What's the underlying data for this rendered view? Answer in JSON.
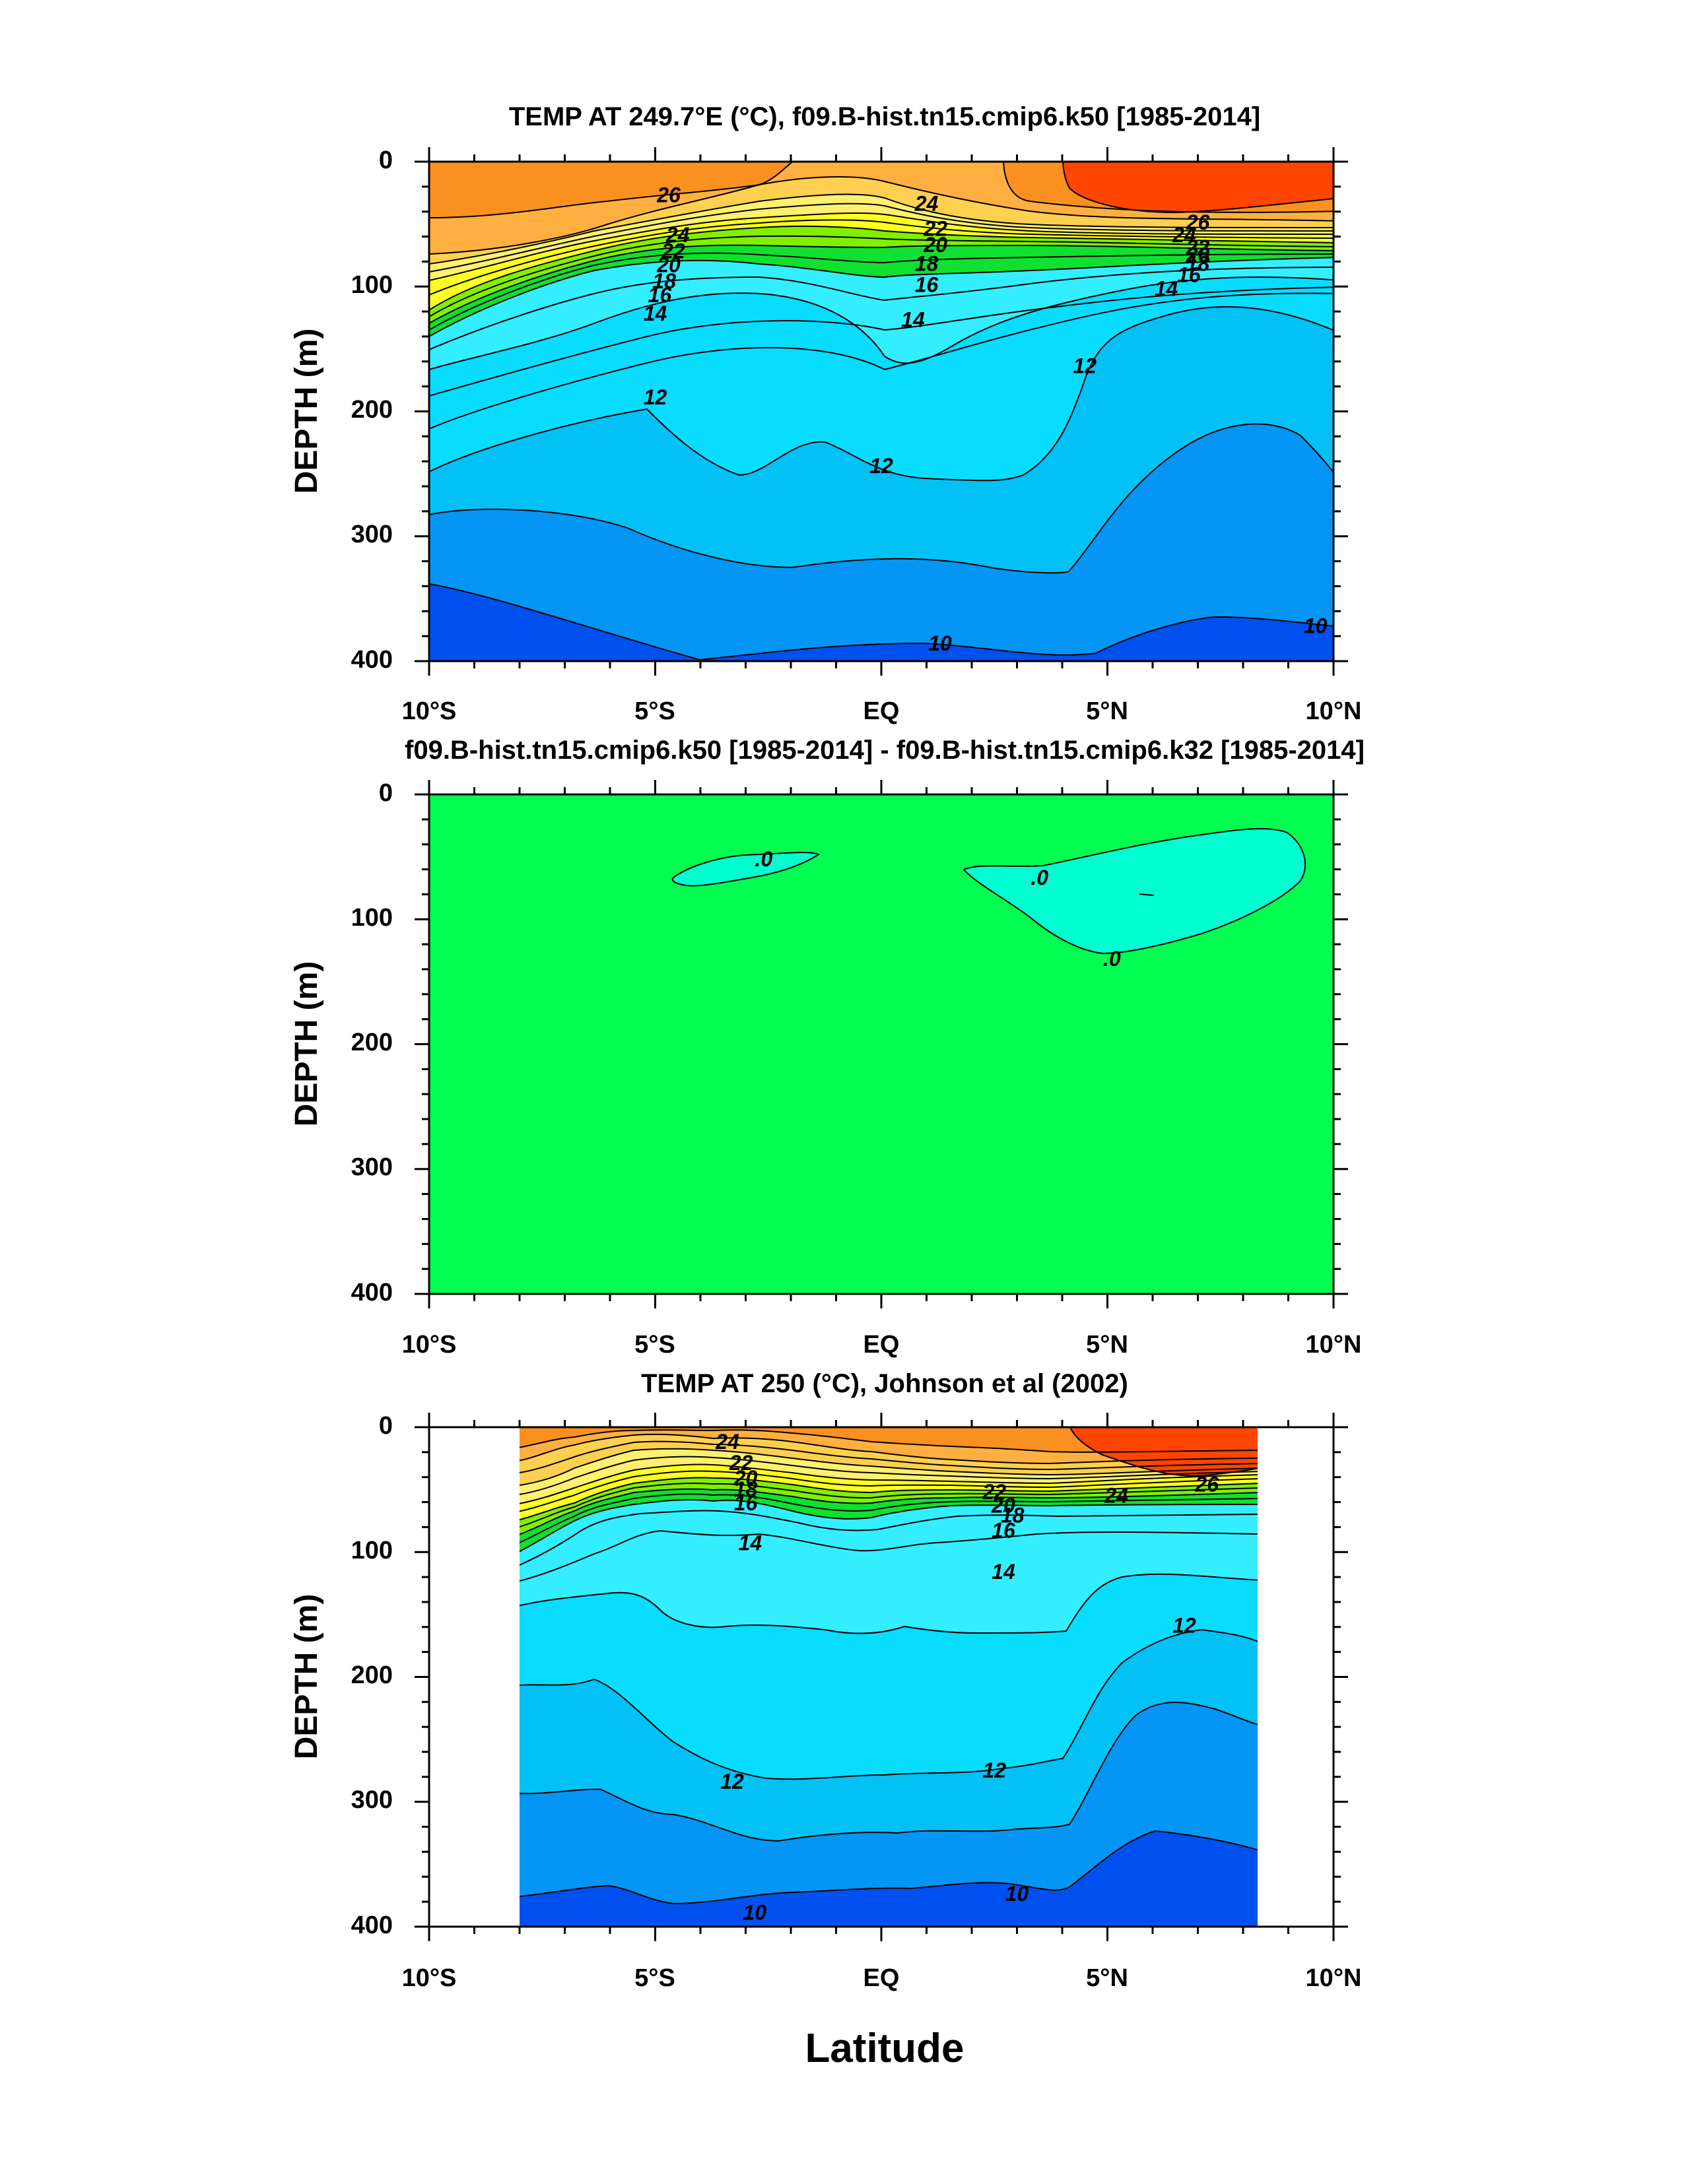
{
  "figure": {
    "xlabel": "Latitude"
  },
  "chart_data": [
    {
      "type": "heatmap",
      "subtype": "filled-contour",
      "title": "TEMP AT 249.7°E (°C), f09.B-hist.tn15.cmip6.k50 [1985-2014]",
      "ylabel": "DEPTH (m)",
      "xlabel": "",
      "x_tick_labels": [
        "10°S",
        "5°S",
        "EQ",
        "5°N",
        "10°N"
      ],
      "y_tick_labels": [
        "0",
        "100",
        "200",
        "300",
        "400"
      ],
      "xlim": [
        -10,
        10
      ],
      "ylim": [
        0,
        400
      ],
      "data_x_extent": [
        -10,
        10
      ],
      "y_inverted": true,
      "contour_levels": [
        10,
        11,
        12,
        13,
        14,
        15,
        16,
        17,
        18,
        19,
        20,
        21,
        22,
        23,
        24,
        25,
        26,
        27
      ],
      "contour_labels": [
        {
          "text": "26",
          "lat": -4.7,
          "depth": 28
        },
        {
          "text": "24",
          "lat": 1.0,
          "depth": 35
        },
        {
          "text": "24",
          "lat": -4.5,
          "depth": 60
        },
        {
          "text": "22",
          "lat": -4.6,
          "depth": 73
        },
        {
          "text": "20",
          "lat": -4.7,
          "depth": 84
        },
        {
          "text": "18",
          "lat": -4.8,
          "depth": 97
        },
        {
          "text": "16",
          "lat": -4.9,
          "depth": 108
        },
        {
          "text": "14",
          "lat": -5.0,
          "depth": 123
        },
        {
          "text": "22",
          "lat": 1.2,
          "depth": 55
        },
        {
          "text": "20",
          "lat": 1.2,
          "depth": 68
        },
        {
          "text": "18",
          "lat": 1.0,
          "depth": 83
        },
        {
          "text": "16",
          "lat": 1.0,
          "depth": 100
        },
        {
          "text": "14",
          "lat": 0.7,
          "depth": 128
        },
        {
          "text": "26",
          "lat": 7.0,
          "depth": 50
        },
        {
          "text": "24",
          "lat": 6.7,
          "depth": 60
        },
        {
          "text": "22",
          "lat": 7.0,
          "depth": 70
        },
        {
          "text": "20",
          "lat": 7.0,
          "depth": 76
        },
        {
          "text": "18",
          "lat": 7.0,
          "depth": 83
        },
        {
          "text": "16",
          "lat": 6.8,
          "depth": 92
        },
        {
          "text": "14",
          "lat": 6.3,
          "depth": 103
        },
        {
          "text": "12",
          "lat": 4.5,
          "depth": 165
        },
        {
          "text": "12",
          "lat": -5.0,
          "depth": 190
        },
        {
          "text": "12",
          "lat": 0.0,
          "depth": 245
        },
        {
          "text": "10",
          "lat": 1.3,
          "depth": 387
        },
        {
          "text": "10",
          "lat": 9.6,
          "depth": 373
        }
      ],
      "colors": [
        "#0050f0",
        "#0595f5",
        "#03c0f5",
        "#08dcff",
        "#33eeff",
        "#10e030",
        "#80f000",
        "#ffff20",
        "#fff070",
        "#ffd050",
        "#ffb040",
        "#fa9020",
        "#ff4500"
      ],
      "color_levels": [
        "<10",
        "10-11",
        "11-12",
        "12-13",
        "13-14",
        "14-16",
        "16-18",
        "18-20",
        "20-22",
        "22-24",
        "24-26",
        "26-27",
        ">27"
      ]
    },
    {
      "type": "heatmap",
      "subtype": "filled-contour",
      "title": "f09.B-hist.tn15.cmip6.k50 [1985-2014] - f09.B-hist.tn15.cmip6.k32 [1985-2014]",
      "ylabel": "DEPTH (m)",
      "xlabel": "",
      "x_tick_labels": [
        "10°S",
        "5°S",
        "EQ",
        "5°N",
        "10°N"
      ],
      "y_tick_labels": [
        "0",
        "100",
        "200",
        "300",
        "400"
      ],
      "xlim": [
        -10,
        10
      ],
      "ylim": [
        0,
        400
      ],
      "y_inverted": true,
      "background_color": "#00ff50",
      "region_color": "#00ffd0",
      "contour_labels": [
        {
          "text": ".0",
          "lat": -2.6,
          "depth": 53
        },
        {
          "text": ".0",
          "lat": 3.5,
          "depth": 68
        },
        {
          "text": ".0",
          "lat": 5.1,
          "depth": 133
        }
      ]
    },
    {
      "type": "heatmap",
      "subtype": "filled-contour",
      "title": "TEMP AT 250 (°C), Johnson et al (2002)",
      "ylabel": "DEPTH (m)",
      "xlabel": "Latitude",
      "x_tick_labels": [
        "10°S",
        "5°S",
        "EQ",
        "5°N",
        "10°N"
      ],
      "y_tick_labels": [
        "0",
        "100",
        "200",
        "300",
        "400"
      ],
      "xlim": [
        -10,
        10
      ],
      "ylim": [
        0,
        400
      ],
      "data_x_extent": [
        -8,
        8.2
      ],
      "y_inverted": true,
      "contour_levels": [
        10,
        11,
        12,
        13,
        14,
        15,
        16,
        17,
        18,
        19,
        20,
        21,
        22,
        23,
        24,
        25,
        26,
        27
      ],
      "contour_labels": [
        {
          "text": "24",
          "lat": -3.4,
          "depth": 13
        },
        {
          "text": "22",
          "lat": -3.1,
          "depth": 30
        },
        {
          "text": "20",
          "lat": -3.0,
          "depth": 42
        },
        {
          "text": "18",
          "lat": -3.0,
          "depth": 51
        },
        {
          "text": "16",
          "lat": -3.0,
          "depth": 62
        },
        {
          "text": "14",
          "lat": -2.9,
          "depth": 94
        },
        {
          "text": "22",
          "lat": 2.5,
          "depth": 53
        },
        {
          "text": "20",
          "lat": 2.7,
          "depth": 64
        },
        {
          "text": "18",
          "lat": 2.9,
          "depth": 72
        },
        {
          "text": "16",
          "lat": 2.7,
          "depth": 84
        },
        {
          "text": "14",
          "lat": 2.7,
          "depth": 117
        },
        {
          "text": "24",
          "lat": 5.2,
          "depth": 56
        },
        {
          "text": "26",
          "lat": 7.2,
          "depth": 47
        },
        {
          "text": "12",
          "lat": 6.7,
          "depth": 160
        },
        {
          "text": "12",
          "lat": -3.3,
          "depth": 285
        },
        {
          "text": "12",
          "lat": 2.5,
          "depth": 276
        },
        {
          "text": "10",
          "lat": -2.8,
          "depth": 390
        },
        {
          "text": "10",
          "lat": 3.0,
          "depth": 375
        }
      ],
      "colors": [
        "#0050f0",
        "#0595f5",
        "#03c0f5",
        "#08dcff",
        "#33eeff",
        "#10e030",
        "#80f000",
        "#ffff20",
        "#fff070",
        "#ffd050",
        "#ffb040",
        "#fa9020",
        "#ff4500"
      ],
      "color_levels": [
        "<10",
        "10-11",
        "11-12",
        "12-13",
        "13-14",
        "14-16",
        "16-18",
        "18-20",
        "20-22",
        "22-24",
        "24-26",
        "26-27",
        ">27"
      ]
    }
  ]
}
